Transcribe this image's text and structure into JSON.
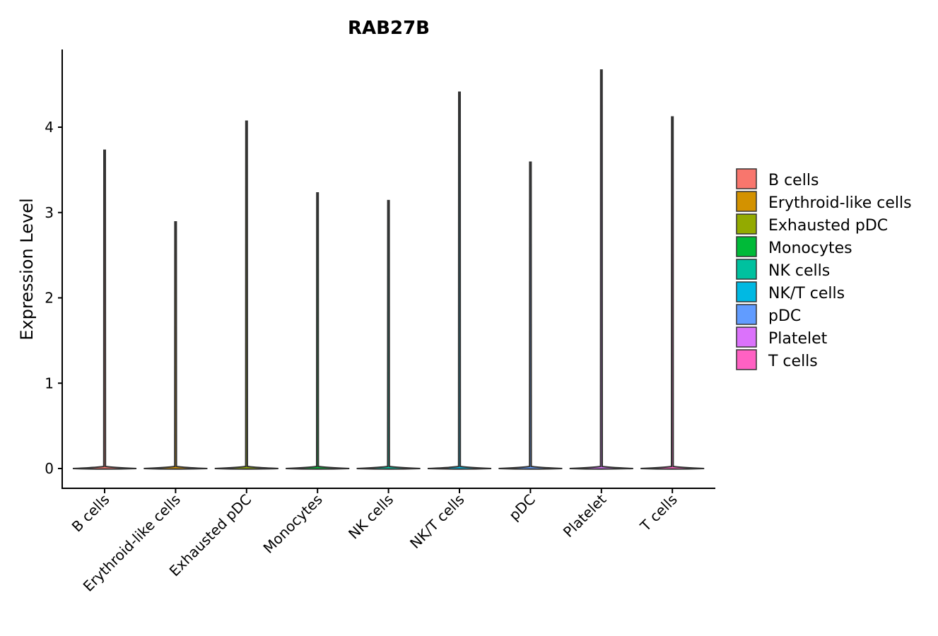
{
  "chart_data": {
    "type": "violin",
    "title": "RAB27B",
    "xlabel": "",
    "ylabel": "Expression Level",
    "ylim": [
      -0.23,
      4.9
    ],
    "yticks": [
      "0",
      "1",
      "2",
      "3",
      "4"
    ],
    "categories": [
      "B cells",
      "Erythroid-like cells",
      "Exhausted pDC",
      "Monocytes",
      "NK cells",
      "NK/T cells",
      "pDC",
      "Platelet",
      "T cells"
    ],
    "max_values": [
      3.73,
      2.89,
      4.07,
      3.23,
      3.14,
      4.41,
      3.59,
      4.67,
      4.12
    ],
    "colors": [
      "#F8766D",
      "#D39200",
      "#93AA00",
      "#00BA38",
      "#00C19F",
      "#00B9E3",
      "#619CFF",
      "#DB72FB",
      "#FF61C3"
    ],
    "legend": {
      "position": "right",
      "entries": [
        "B cells",
        "Erythroid-like cells",
        "Exhausted pDC",
        "Monocytes",
        "NK cells",
        "NK/T cells",
        "pDC",
        "Platelet",
        "T cells"
      ]
    },
    "grid": false
  }
}
